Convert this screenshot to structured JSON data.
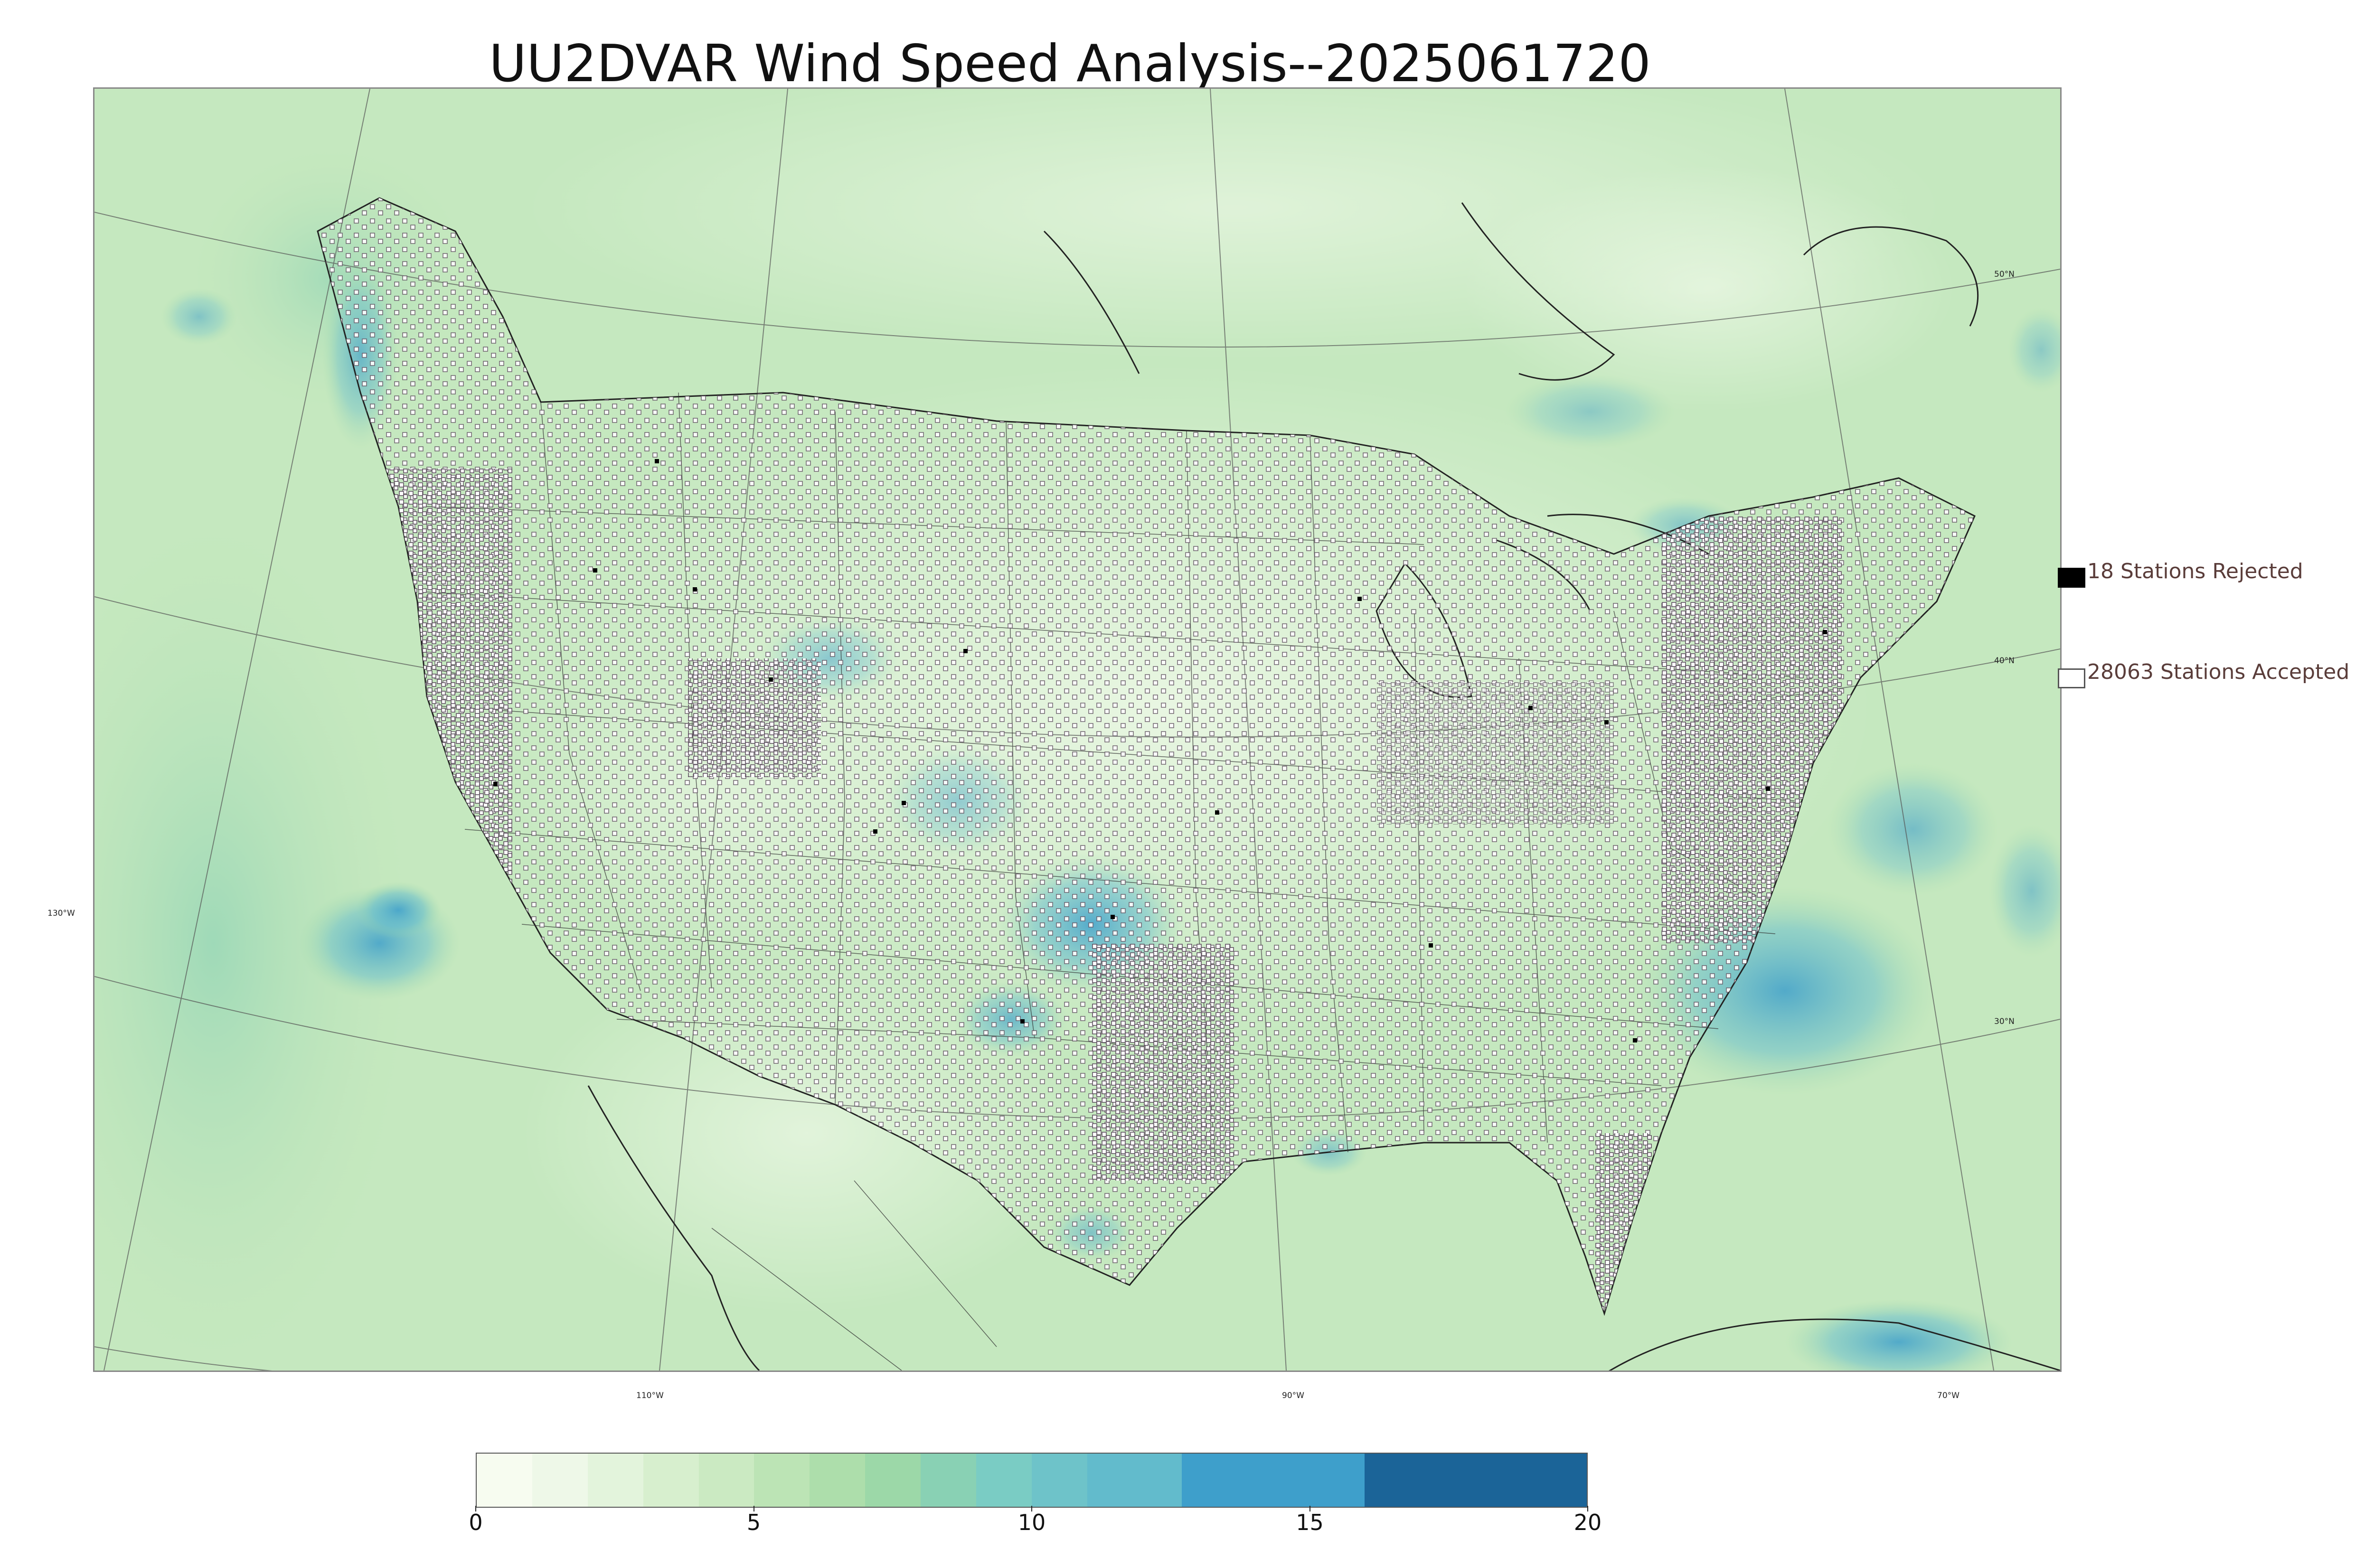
{
  "title": "UU2DVAR Wind Speed Analysis--2025061720",
  "map": {
    "projection": "lambert-conformal",
    "coastline_color": "#111111",
    "border_color": "#333333",
    "graticule_color": "#555555",
    "station_marker_accepted": "open-square",
    "station_marker_rejected": "filled-square"
  },
  "graticule_labels": {
    "longitude": [
      "110°W",
      "90°W",
      "70°W"
    ],
    "latitude": [
      "50°N",
      "40°N",
      "30°N"
    ],
    "left": [
      "130°W"
    ]
  },
  "legend": {
    "rejected_label": "18 Stations Rejected",
    "accepted_label": "28063 Stations Accepted",
    "rejected_color": "#000000",
    "accepted_color": "#ffffff"
  },
  "colorbar": {
    "min": 0,
    "max": 20,
    "tick_labels": [
      "0",
      "5",
      "10",
      "15",
      "20"
    ],
    "bands": [
      {
        "from": 0,
        "to": 1,
        "color": "#f7fcf0"
      },
      {
        "from": 1,
        "to": 2,
        "color": "#eef8e8"
      },
      {
        "from": 2,
        "to": 3,
        "color": "#e3f4dc"
      },
      {
        "from": 3,
        "to": 4,
        "color": "#d7efce"
      },
      {
        "from": 4,
        "to": 5,
        "color": "#cbeac2"
      },
      {
        "from": 5,
        "to": 6,
        "color": "#bce4b5"
      },
      {
        "from": 6,
        "to": 7,
        "color": "#addeab"
      },
      {
        "from": 7,
        "to": 8,
        "color": "#9cd8a8"
      },
      {
        "from": 8,
        "to": 9,
        "color": "#89d1b4"
      },
      {
        "from": 9,
        "to": 10,
        "color": "#7accc4"
      },
      {
        "from": 10,
        "to": 11,
        "color": "#6ec3c9"
      },
      {
        "from": 11,
        "to": 12.7,
        "color": "#62bbcc"
      },
      {
        "from": 12.7,
        "to": 16,
        "color": "#3e9fcb"
      },
      {
        "from": 16,
        "to": 20,
        "color": "#1b6498"
      }
    ]
  }
}
